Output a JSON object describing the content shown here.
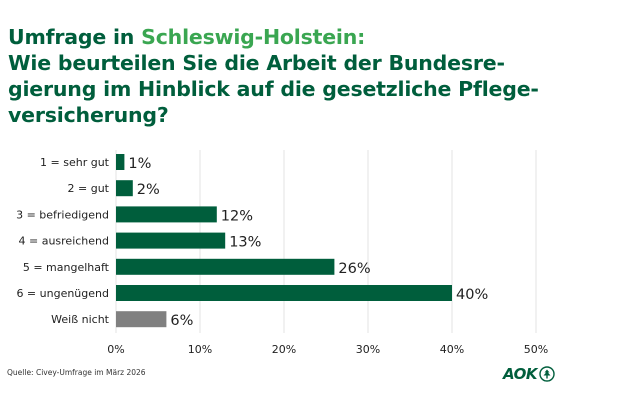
{
  "title": {
    "prefix": "Umfrage in ",
    "highlight": "Schleswig-Holstein:",
    "lines": [
      "Wie beurteilen Sie die Arbeit der Bundesre-",
      "gierung im Hinblick auf die gesetzliche Pflege-",
      "versicherung?"
    ]
  },
  "chart_data": {
    "type": "bar",
    "orientation": "horizontal",
    "categories": [
      "1 = sehr gut",
      "2 = gut",
      "3 = befriedigend",
      "4 = ausreichend",
      "5 = mangelhaft",
      "6 = ungenügend",
      "Weiß nicht"
    ],
    "values": [
      1,
      2,
      12,
      13,
      26,
      40,
      6
    ],
    "value_labels": [
      "1%",
      "2%",
      "12%",
      "13%",
      "26%",
      "40%",
      "6%"
    ],
    "bar_colors": [
      "#005e3c",
      "#005e3c",
      "#005e3c",
      "#005e3c",
      "#005e3c",
      "#005e3c",
      "#808080"
    ],
    "xlim": [
      0,
      50
    ],
    "xticks": [
      0,
      10,
      20,
      30,
      40,
      50
    ],
    "xtick_labels": [
      "0%",
      "10%",
      "20%",
      "30%",
      "40%",
      "50%"
    ],
    "grid": true,
    "xlabel": "",
    "ylabel": ""
  },
  "source": "Quelle: Civey-Umfrage im März 2026",
  "logo_text": "AOK",
  "colors": {
    "primary": "#005e3c",
    "highlight": "#3aa651",
    "neutral": "#808080",
    "grid": "#e3e3e3"
  }
}
